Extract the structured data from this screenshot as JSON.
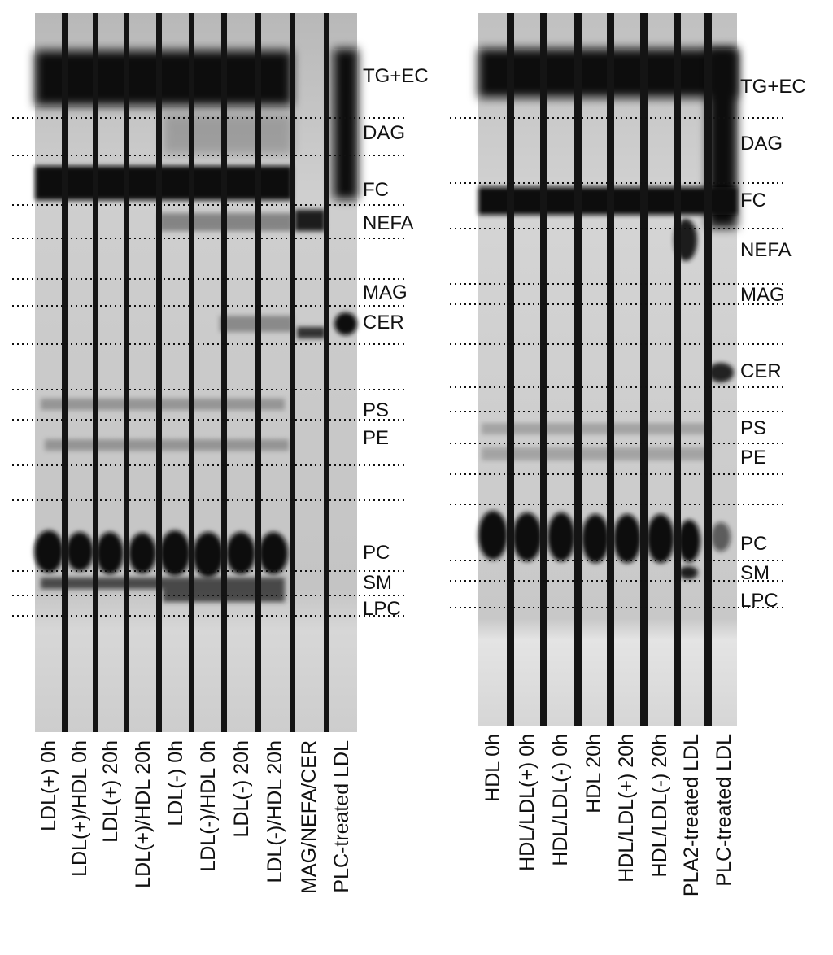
{
  "panels": [
    {
      "id": "left",
      "lanes": [
        "LDL(+) 0h",
        "LDL(+)/HDL 0h",
        "LDL(+) 20h",
        "LDL(+)/HDL 20h",
        "LDL(-) 0h",
        "LDL(-)/HDL 0h",
        "LDL(-) 20h",
        "LDL(-)/HDL 20h",
        "MAG/NEFA/CER",
        "PLC-treated LDL"
      ],
      "band_labels": [
        "TG+EC",
        "DAG",
        "FC",
        "NEFA",
        "MAG",
        "CER",
        "PS",
        "PE",
        "PC",
        "SM",
        "LPC"
      ]
    },
    {
      "id": "right",
      "lanes": [
        "HDL 0h",
        "HDL/LDL(+) 0h",
        "HDL/LDL(-) 0h",
        "HDL 20h",
        "HDL/LDL(+) 20h",
        "HDL/LDL(-) 20h",
        "PLA2-treated LDL",
        "PLC-treated LDL"
      ],
      "band_labels": [
        "TG+EC",
        "DAG",
        "FC",
        "NEFA",
        "MAG",
        "CER",
        "PS",
        "PE",
        "PC",
        "SM",
        "LPC"
      ]
    }
  ],
  "colors": {
    "gel_background": "#c9c9c9",
    "band": "#111111",
    "lane_divider": "#161616"
  }
}
